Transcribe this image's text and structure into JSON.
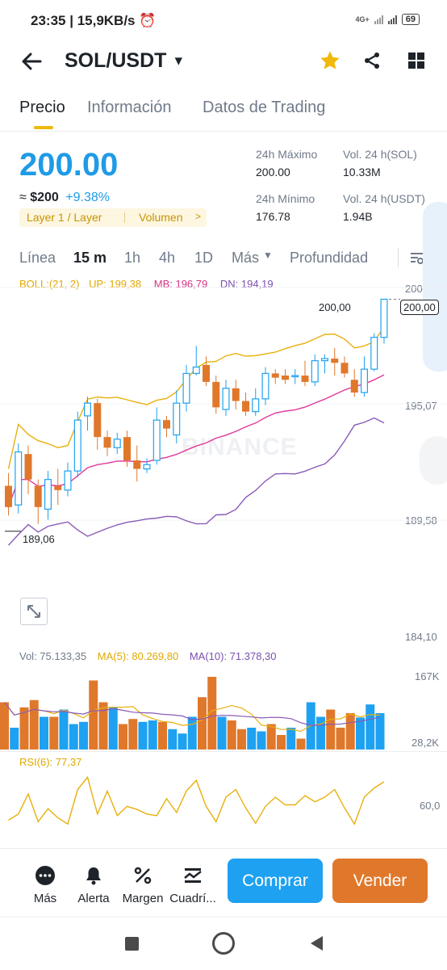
{
  "status_bar": {
    "time": "23:35",
    "speed": "15,9KB/s",
    "network": "4G+",
    "battery": "69"
  },
  "header": {
    "pair": "SOL/USDT"
  },
  "tabs": [
    "Precio",
    "Información",
    "Datos de Trading"
  ],
  "price": {
    "last": "200.00",
    "approx_prefix": "≈",
    "approx": "$200",
    "change": "+9.38%",
    "tag1": "Layer 1 / Layer",
    "tag2": "Volumen",
    "tag2_arrow": ">"
  },
  "stats": {
    "high_label": "24h Máximo",
    "high_value": "200.00",
    "low_label": "24h Mínimo",
    "low_value": "176.78",
    "vol_base_label": "Vol. 24 h(SOL)",
    "vol_base_value": "10.33M",
    "vol_quote_label": "Vol. 24 h(USDT)",
    "vol_quote_value": "1.94B"
  },
  "intervals": {
    "line": "Línea",
    "m15": "15 m",
    "h1": "1h",
    "h4": "4h",
    "d1": "1D",
    "more": "Más",
    "depth": "Profundidad"
  },
  "boll": {
    "params": "BOLL:(21, 2)",
    "up": "UP: 199,38",
    "mb": "MB: 196,79",
    "dn": "DN: 194,19"
  },
  "price_axis": {
    "top": "200,55",
    "mid": "195,07",
    "low": "189,58",
    "bottom": "184,10",
    "current": "200,00",
    "max_label": "200,00",
    "min_label": "189,06"
  },
  "watermark": "BINANCE",
  "volume": {
    "vol": "Vol: 75.133,35",
    "ma5": "MA(5): 80.269,80",
    "ma10": "MA(10): 71.378,30",
    "axis_top": "167K",
    "axis_bottom": "28,2K"
  },
  "rsi": {
    "label": "RSI(6): 77,37",
    "axis": "60,0"
  },
  "colors": {
    "up": "#1ea1f1",
    "down": "#e0782c",
    "boll_up": "#e8b00c",
    "boll_mb": "#e0389a",
    "boll_dn": "#8a5ab8",
    "buy": "#1ea1f1",
    "sell": "#e0782c"
  },
  "bottom_bar": {
    "more": "Más",
    "alert": "Alerta",
    "margin": "Margen",
    "grid": "Cuadrí...",
    "buy": "Comprar",
    "sell": "Vender"
  },
  "candles": [
    [
      191.2,
      190.2,
      191.8,
      189.8
    ],
    [
      190.3,
      192.8,
      193.2,
      189.9
    ],
    [
      192.7,
      191.5,
      193.1,
      190.8
    ],
    [
      191.2,
      190.2,
      191.5,
      189.4
    ],
    [
      190.1,
      191.5,
      191.9,
      189.6
    ],
    [
      191.2,
      191.0,
      192.0,
      190.3
    ],
    [
      191.0,
      191.9,
      192.3,
      190.7
    ],
    [
      191.9,
      194.3,
      194.7,
      191.6
    ],
    [
      194.5,
      195.1,
      195.4,
      193.8
    ],
    [
      195.1,
      193.5,
      195.3,
      192.9
    ],
    [
      193.5,
      193.0,
      193.8,
      192.6
    ],
    [
      193.0,
      193.4,
      193.7,
      192.7
    ],
    [
      193.5,
      192.4,
      193.8,
      192.1
    ],
    [
      192.4,
      192.0,
      193.1,
      191.4
    ],
    [
      192.0,
      192.2,
      192.5,
      191.8
    ],
    [
      192.4,
      194.3,
      194.9,
      192.2
    ],
    [
      194.3,
      193.9,
      194.5,
      193.5
    ],
    [
      193.6,
      195.1,
      195.7,
      193.2
    ],
    [
      195.1,
      196.5,
      196.9,
      194.7
    ],
    [
      196.5,
      196.8,
      197.8,
      196.4
    ],
    [
      196.9,
      196.1,
      197.3,
      195.9
    ],
    [
      196.1,
      194.9,
      196.4,
      194.6
    ],
    [
      194.8,
      195.8,
      196.2,
      194.5
    ],
    [
      195.8,
      195.2,
      196.2,
      194.8
    ],
    [
      195.2,
      194.7,
      195.6,
      194.5
    ],
    [
      194.7,
      195.3,
      195.8,
      194.5
    ],
    [
      195.3,
      196.5,
      196.8,
      195.0
    ],
    [
      196.5,
      196.3,
      196.7,
      196.0
    ],
    [
      196.4,
      196.2,
      196.7,
      196.0
    ],
    [
      196.4,
      196.4,
      196.7,
      196.0
    ],
    [
      196.4,
      196.1,
      197.1,
      195.9
    ],
    [
      196.1,
      197.1,
      197.4,
      195.9
    ],
    [
      197.1,
      197.2,
      197.4,
      196.5
    ],
    [
      197.2,
      197.0,
      197.7,
      196.4
    ],
    [
      197.0,
      196.5,
      197.3,
      196.3
    ],
    [
      196.2,
      195.6,
      196.7,
      195.4
    ],
    [
      195.6,
      196.7,
      197.3,
      195.4
    ],
    [
      196.7,
      198.2,
      198.4,
      196.6
    ],
    [
      198.2,
      200.0,
      200.0,
      197.9
    ]
  ],
  "vol_series": [
    0.65,
    0.3,
    0.58,
    0.68,
    0.45,
    0.45,
    0.55,
    0.35,
    0.38,
    0.95,
    0.65,
    0.58,
    0.35,
    0.42,
    0.38,
    0.4,
    0.38,
    0.28,
    0.22,
    0.45,
    0.72,
    1.0,
    0.45,
    0.4,
    0.28,
    0.3,
    0.25,
    0.35,
    0.2,
    0.3,
    0.15,
    0.65,
    0.45,
    0.55,
    0.3,
    0.5,
    0.44,
    0.62,
    0.5
  ],
  "rsi_series": [
    30,
    38,
    64,
    28,
    45,
    33,
    25,
    70,
    86,
    38,
    68,
    36,
    48,
    44,
    38,
    36,
    58,
    40,
    68,
    82,
    48,
    28,
    60,
    70,
    46,
    26,
    48,
    60,
    50,
    50,
    62,
    54,
    60,
    70,
    46,
    25,
    60,
    72,
    80
  ]
}
